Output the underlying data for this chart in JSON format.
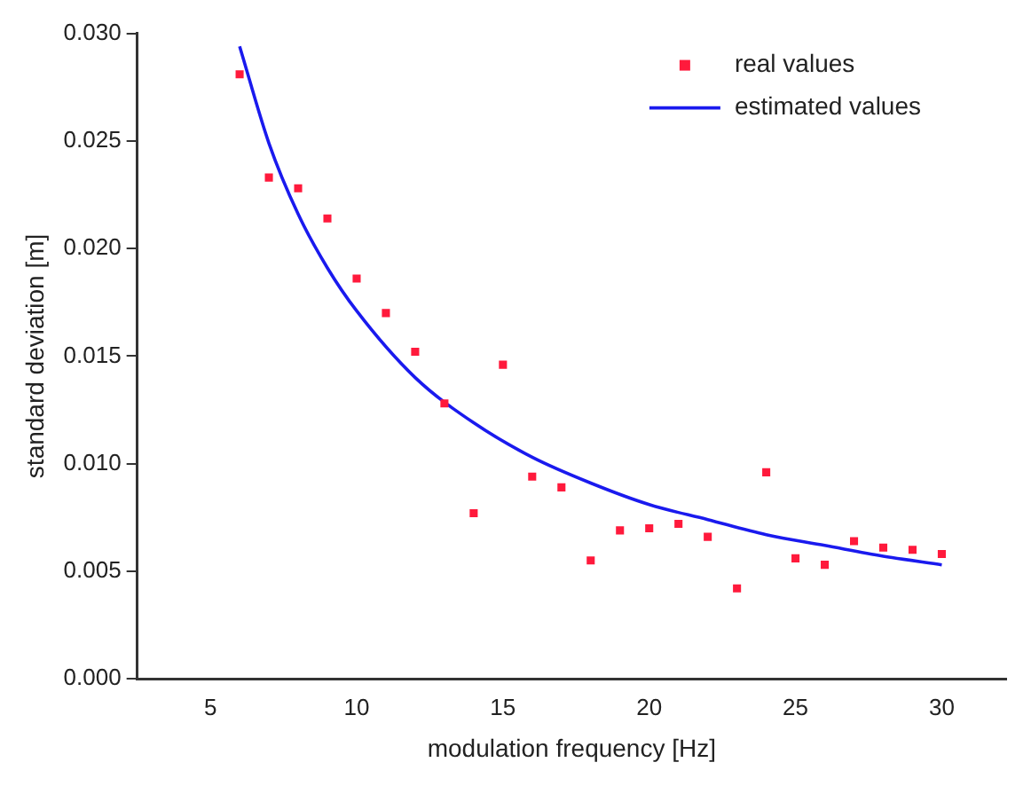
{
  "chart_data": {
    "type": "scatter",
    "xlabel": "modulation frequency [Hz]",
    "ylabel": "standard deviation [m]",
    "xlim": [
      2.5,
      32.2
    ],
    "xticks": [
      5,
      10,
      15,
      20,
      25,
      30
    ],
    "ylim": [
      0,
      0.03
    ],
    "yticks": [
      {
        "value": 0,
        "label": "0.000"
      },
      {
        "value": 0.005,
        "label": "0.005"
      },
      {
        "value": 0.01,
        "label": "0.010"
      },
      {
        "value": 0.015,
        "label": "0.015"
      },
      {
        "value": 0.02,
        "label": "0.020"
      },
      {
        "value": 0.025,
        "label": "0.025"
      },
      {
        "value": 0.03,
        "label": "0.030"
      }
    ],
    "grid": false,
    "legend": "top right",
    "series": [
      {
        "name": "real values",
        "marker": "square",
        "color": "#ff1a3c",
        "x": [
          6,
          7,
          8,
          9,
          10,
          11,
          12,
          13,
          14,
          15,
          16,
          17,
          18,
          19,
          20,
          21,
          22,
          23,
          24,
          25,
          26,
          27,
          28,
          29,
          30
        ],
        "values": [
          0.0281,
          0.0233,
          0.0228,
          0.0214,
          0.0186,
          0.017,
          0.0152,
          0.0128,
          0.0077,
          0.0146,
          0.0094,
          0.0089,
          0.0055,
          0.0069,
          0.007,
          0.0072,
          0.0066,
          0.0042,
          0.0096,
          0.0056,
          0.0053,
          0.0064,
          0.0061,
          0.006,
          0.0058
        ]
      },
      {
        "name": "estimated values",
        "type": "line",
        "marker": "none",
        "color": "#1a1aee",
        "line_style": "solid",
        "x": [
          6,
          7,
          8,
          9,
          10,
          12,
          14,
          16,
          18,
          20,
          22,
          24,
          26,
          28,
          30
        ],
        "values": [
          0.0294,
          0.0249,
          0.0216,
          0.0191,
          0.0171,
          0.014,
          0.0119,
          0.0103,
          0.0091,
          0.0081,
          0.0074,
          0.0067,
          0.0062,
          0.0057,
          0.0053
        ]
      }
    ]
  }
}
